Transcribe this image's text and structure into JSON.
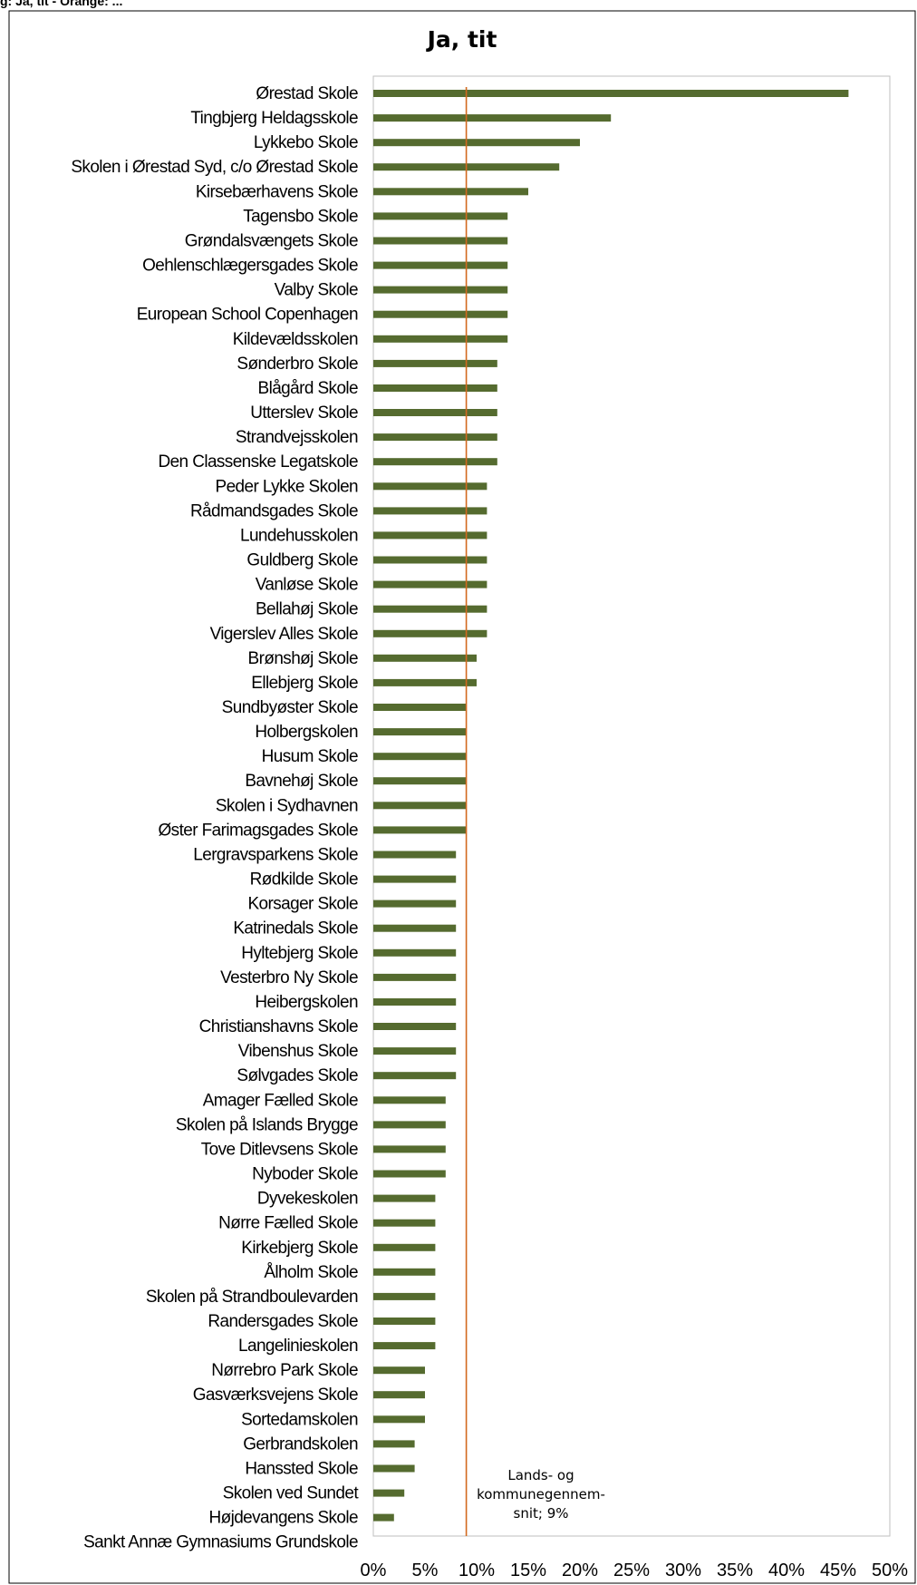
{
  "header": {
    "caption": "g: Ja, tit - Orange: ..."
  },
  "chart_data": {
    "type": "bar",
    "orientation": "horizontal",
    "title": "Ja, tit",
    "categories": [
      "Ørestad Skole",
      "Tingbjerg Heldagsskole",
      "Lykkebo Skole",
      "Skolen i Ørestad Syd, c/o Ørestad Skole",
      "Kirsebærhavens Skole",
      "Tagensbo Skole",
      "Grøndalsvængets Skole",
      "Oehlenschlægersgades Skole",
      "Valby Skole",
      "European School Copenhagen",
      "Kildevældsskolen",
      "Sønderbro Skole",
      "Blågård Skole",
      "Utterslev Skole",
      "Strandvejsskolen",
      "Den Classenske Legatskole",
      "Peder Lykke Skolen",
      "Rådmandsgades Skole",
      "Lundehusskolen",
      "Guldberg Skole",
      "Vanløse Skole",
      "Bellahøj Skole",
      "Vigerslev Alles Skole",
      "Brønshøj Skole",
      "Ellebjerg Skole",
      "Sundbyøster Skole",
      "Holbergskolen",
      "Husum Skole",
      "Bavnehøj Skole",
      "Skolen i Sydhavnen",
      "Øster Farimagsgades Skole",
      "Lergravsparkens Skole",
      "Rødkilde Skole",
      "Korsager Skole",
      "Katrinedals Skole",
      "Hyltebjerg Skole",
      "Vesterbro Ny Skole",
      "Heibergskolen",
      "Christianshavns Skole",
      "Vibenshus Skole",
      "Sølvgades Skole",
      "Amager Fælled Skole",
      "Skolen på Islands Brygge",
      "Tove Ditlevsens Skole",
      "Nyboder Skole",
      "Dyvekeskolen",
      "Nørre Fælled Skole",
      "Kirkebjerg Skole",
      "Ålholm Skole",
      "Skolen på Strandboulevarden",
      "Randersgades Skole",
      "Langelinieskolen",
      "Nørrebro Park Skole",
      "Gasværksvejens Skole",
      "Sortedamskolen",
      "Gerbrandskolen",
      "Hanssted Skole",
      "Skolen ved Sundet",
      "Højdevangens Skole",
      "Sankt Annæ Gymnasiums Grundskole"
    ],
    "values": [
      46,
      23,
      20,
      18,
      15,
      13,
      13,
      13,
      13,
      13,
      13,
      12,
      12,
      12,
      12,
      12,
      11,
      11,
      11,
      11,
      11,
      11,
      11,
      10,
      10,
      9,
      9,
      9,
      9,
      9,
      9,
      8,
      8,
      8,
      8,
      8,
      8,
      8,
      8,
      8,
      8,
      7,
      7,
      7,
      7,
      6,
      6,
      6,
      6,
      6,
      6,
      6,
      5,
      5,
      5,
      4,
      4,
      3,
      2,
      0
    ],
    "xlim": [
      0,
      50
    ],
    "xticks": [
      0,
      5,
      10,
      15,
      20,
      25,
      30,
      35,
      40,
      45,
      50
    ],
    "xtick_labels": [
      "0%",
      "5%",
      "10%",
      "15%",
      "20%",
      "25%",
      "30%",
      "35%",
      "40%",
      "45%",
      "50%"
    ],
    "reference_line": {
      "value": 9,
      "label_lines": [
        "Lands- og",
        "kommunegennem-",
        "snit; 9%"
      ]
    },
    "grid": false,
    "legend": "none",
    "colors": {
      "bar": "#556b2f",
      "reference_line": "#d2691e",
      "plot_border": "#bfbfbf",
      "outer_border": "#000000"
    }
  }
}
